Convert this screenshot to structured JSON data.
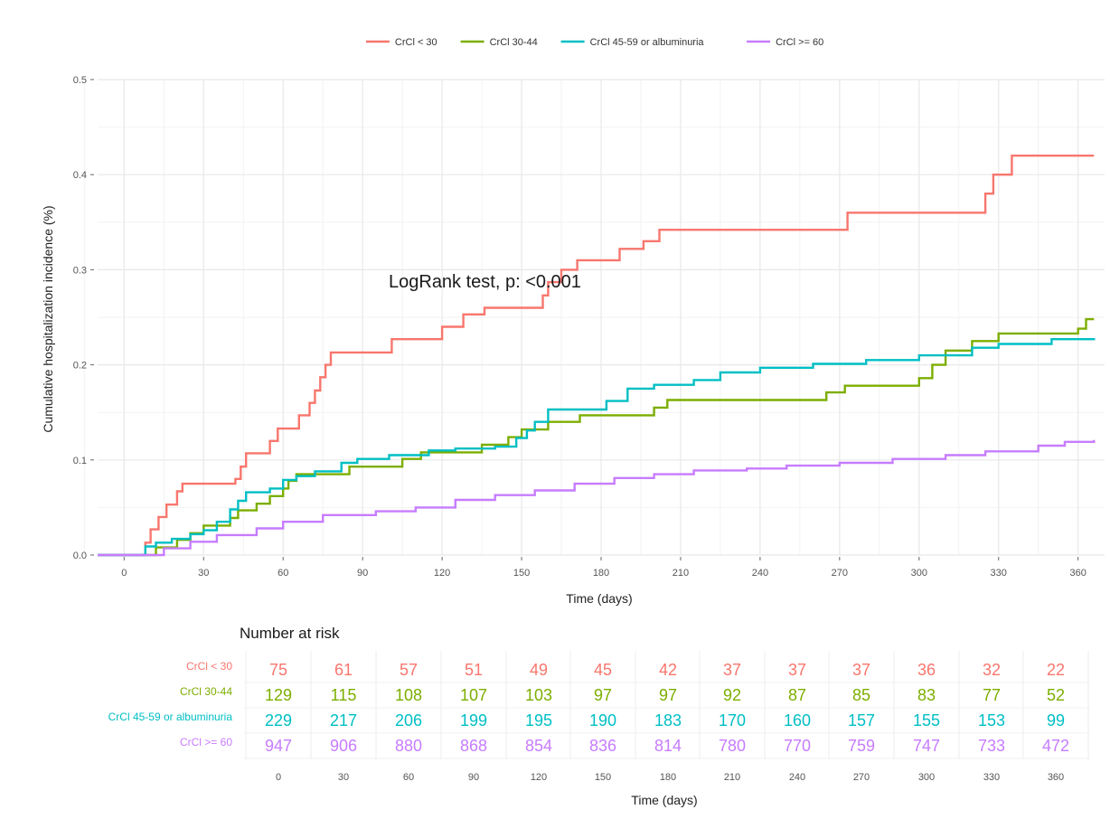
{
  "chart_data": [
    {
      "type": "line",
      "step": true,
      "title": "",
      "xlabel": "Time (days)",
      "ylabel": "Cumulative hospitalization incidence (%)",
      "xlim": [
        -10,
        370
      ],
      "ylim": [
        0,
        0.5
      ],
      "x_ticks": [
        0,
        30,
        60,
        90,
        120,
        150,
        180,
        210,
        240,
        270,
        300,
        330,
        360
      ],
      "y_ticks": [
        0.0,
        0.1,
        0.2,
        0.3,
        0.4,
        0.5
      ],
      "y_tick_labels": [
        "0.0",
        "0.1",
        "0.2",
        "0.3",
        "0.4",
        "0.5"
      ],
      "grid": true,
      "legend_position": "top",
      "annotation": "LogRank test, p: <0.001",
      "series": [
        {
          "name": "CrCl < 30",
          "color": "#F8766D",
          "points": [
            [
              -10,
              0
            ],
            [
              5,
              0
            ],
            [
              8,
              0.013
            ],
            [
              10,
              0.027
            ],
            [
              13,
              0.04
            ],
            [
              16,
              0.053
            ],
            [
              20,
              0.067
            ],
            [
              22,
              0.075
            ],
            [
              42,
              0.08
            ],
            [
              44,
              0.093
            ],
            [
              46,
              0.107
            ],
            [
              55,
              0.12
            ],
            [
              58,
              0.133
            ],
            [
              66,
              0.147
            ],
            [
              70,
              0.16
            ],
            [
              72,
              0.173
            ],
            [
              74,
              0.187
            ],
            [
              76,
              0.2
            ],
            [
              78,
              0.213
            ],
            [
              101,
              0.227
            ],
            [
              120,
              0.24
            ],
            [
              128,
              0.253
            ],
            [
              136,
              0.26
            ],
            [
              158,
              0.273
            ],
            [
              160,
              0.287
            ],
            [
              165,
              0.3
            ],
            [
              171,
              0.31
            ],
            [
              187,
              0.322
            ],
            [
              196,
              0.33
            ],
            [
              202,
              0.342
            ],
            [
              273,
              0.36
            ],
            [
              325,
              0.38
            ],
            [
              328,
              0.4
            ],
            [
              335,
              0.42
            ],
            [
              366,
              0.42
            ]
          ]
        },
        {
          "name": "CrCl 30-44",
          "color": "#7CAE00",
          "points": [
            [
              -10,
              0
            ],
            [
              10,
              0
            ],
            [
              12,
              0.008
            ],
            [
              20,
              0.016
            ],
            [
              25,
              0.023
            ],
            [
              30,
              0.031
            ],
            [
              40,
              0.039
            ],
            [
              43,
              0.047
            ],
            [
              50,
              0.054
            ],
            [
              55,
              0.062
            ],
            [
              60,
              0.07
            ],
            [
              62,
              0.078
            ],
            [
              65,
              0.085
            ],
            [
              85,
              0.093
            ],
            [
              105,
              0.101
            ],
            [
              112,
              0.108
            ],
            [
              135,
              0.116
            ],
            [
              145,
              0.124
            ],
            [
              150,
              0.132
            ],
            [
              160,
              0.14
            ],
            [
              172,
              0.147
            ],
            [
              200,
              0.155
            ],
            [
              205,
              0.163
            ],
            [
              265,
              0.171
            ],
            [
              272,
              0.178
            ],
            [
              300,
              0.186
            ],
            [
              305,
              0.2
            ],
            [
              310,
              0.215
            ],
            [
              320,
              0.225
            ],
            [
              330,
              0.233
            ],
            [
              360,
              0.238
            ],
            [
              363,
              0.248
            ],
            [
              366,
              0.248
            ]
          ]
        },
        {
          "name": "CrCl 45-59 or albuminuria",
          "color": "#00BFC4",
          "points": [
            [
              -10,
              0
            ],
            [
              5,
              0
            ],
            [
              8,
              0.009
            ],
            [
              12,
              0.013
            ],
            [
              18,
              0.017
            ],
            [
              25,
              0.022
            ],
            [
              30,
              0.026
            ],
            [
              35,
              0.035
            ],
            [
              40,
              0.048
            ],
            [
              43,
              0.057
            ],
            [
              46,
              0.066
            ],
            [
              55,
              0.07
            ],
            [
              60,
              0.079
            ],
            [
              65,
              0.083
            ],
            [
              72,
              0.088
            ],
            [
              82,
              0.097
            ],
            [
              88,
              0.101
            ],
            [
              100,
              0.105
            ],
            [
              115,
              0.11
            ],
            [
              125,
              0.112
            ],
            [
              140,
              0.114
            ],
            [
              148,
              0.123
            ],
            [
              152,
              0.131
            ],
            [
              155,
              0.14
            ],
            [
              160,
              0.153
            ],
            [
              182,
              0.162
            ],
            [
              190,
              0.175
            ],
            [
              200,
              0.179
            ],
            [
              215,
              0.184
            ],
            [
              225,
              0.192
            ],
            [
              240,
              0.197
            ],
            [
              260,
              0.201
            ],
            [
              280,
              0.205
            ],
            [
              300,
              0.21
            ],
            [
              320,
              0.218
            ],
            [
              330,
              0.222
            ],
            [
              350,
              0.227
            ],
            [
              366,
              0.228
            ]
          ]
        },
        {
          "name": "CrCl >= 60",
          "color": "#C77CFF",
          "points": [
            [
              -10,
              0
            ],
            [
              5,
              0
            ],
            [
              15,
              0.007
            ],
            [
              25,
              0.014
            ],
            [
              35,
              0.021
            ],
            [
              50,
              0.028
            ],
            [
              60,
              0.035
            ],
            [
              75,
              0.042
            ],
            [
              95,
              0.046
            ],
            [
              110,
              0.05
            ],
            [
              125,
              0.058
            ],
            [
              140,
              0.063
            ],
            [
              155,
              0.068
            ],
            [
              170,
              0.075
            ],
            [
              185,
              0.081
            ],
            [
              200,
              0.085
            ],
            [
              215,
              0.089
            ],
            [
              235,
              0.091
            ],
            [
              250,
              0.094
            ],
            [
              270,
              0.097
            ],
            [
              290,
              0.101
            ],
            [
              310,
              0.105
            ],
            [
              325,
              0.109
            ],
            [
              345,
              0.115
            ],
            [
              355,
              0.119
            ],
            [
              366,
              0.121
            ]
          ]
        }
      ]
    },
    {
      "type": "table",
      "title": "Number at risk",
      "xlabel": "Time (days)",
      "columns": [
        0,
        30,
        60,
        90,
        120,
        150,
        180,
        210,
        240,
        270,
        300,
        330,
        360
      ],
      "rows": [
        {
          "name": "CrCl < 30",
          "color": "#F8766D",
          "values": [
            75,
            61,
            57,
            51,
            49,
            45,
            42,
            37,
            37,
            37,
            36,
            32,
            22
          ]
        },
        {
          "name": "CrCl 30-44",
          "color": "#7CAE00",
          "values": [
            129,
            115,
            108,
            107,
            103,
            97,
            97,
            92,
            87,
            85,
            83,
            77,
            52
          ]
        },
        {
          "name": "CrCl 45-59 or albuminuria",
          "color": "#00BFC4",
          "values": [
            229,
            217,
            206,
            199,
            195,
            190,
            183,
            170,
            160,
            157,
            155,
            153,
            99
          ]
        },
        {
          "name": "CrCl >= 60",
          "color": "#C77CFF",
          "values": [
            947,
            906,
            880,
            868,
            854,
            836,
            814,
            780,
            770,
            759,
            747,
            733,
            472
          ]
        }
      ]
    }
  ]
}
